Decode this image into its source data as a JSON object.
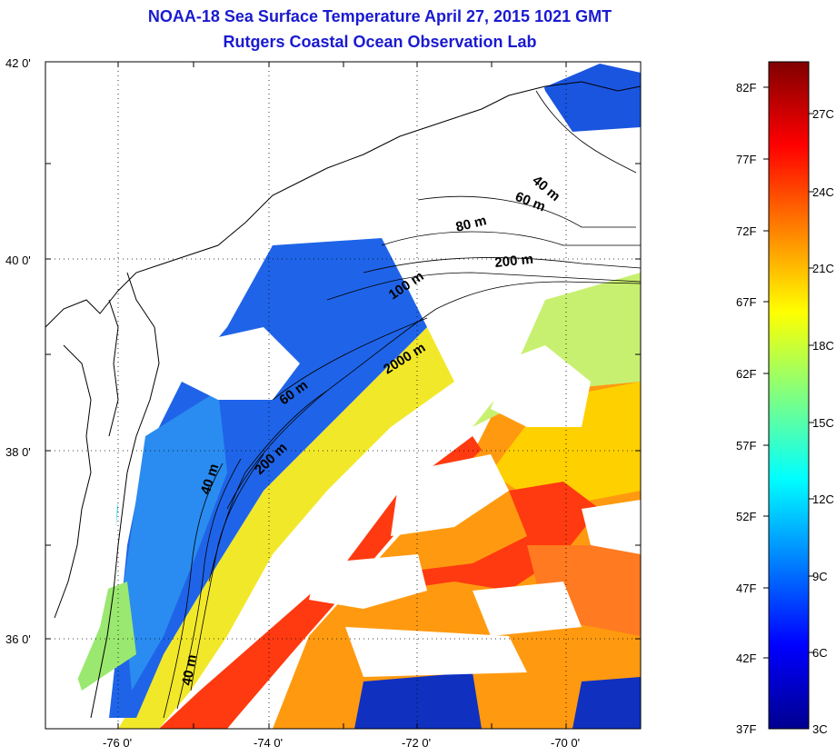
{
  "title": "NOAA-18 Sea Surface Temperature April 27, 2015 1021 GMT",
  "subtitle": "Rutgers Coastal Ocean Observation Lab",
  "map": {
    "lat_ticks": [
      {
        "value": 42,
        "label": "42 0'"
      },
      {
        "value": 40,
        "label": "40 0'"
      },
      {
        "value": 38,
        "label": "38 0'"
      },
      {
        "value": 36,
        "label": "36 0'"
      }
    ],
    "lon_ticks": [
      {
        "value": -76,
        "label": "-76 0'"
      },
      {
        "value": -74,
        "label": "-74 0'"
      },
      {
        "value": -72,
        "label": "-72 0'"
      },
      {
        "value": -70,
        "label": "-70 0'"
      }
    ],
    "grid": true,
    "contour_labels": [
      "40 m",
      "60 m",
      "80 m",
      "200 m",
      "100 m",
      "2000 m",
      "60 m",
      "200 m",
      "40 m",
      "40 m"
    ]
  },
  "colorbar": {
    "fahrenheit": [
      "82F",
      "77F",
      "72F",
      "67F",
      "62F",
      "57F",
      "52F",
      "47F",
      "42F",
      "37F"
    ],
    "celsius": [
      "27C",
      "24C",
      "21C",
      "18C",
      "15C",
      "12C",
      "9C",
      "6C",
      "3C"
    ],
    "colors": [
      "#00008f",
      "#0000ff",
      "#0080ff",
      "#00ffff",
      "#80ff80",
      "#ffff00",
      "#ff8000",
      "#ff0000",
      "#800000"
    ]
  }
}
